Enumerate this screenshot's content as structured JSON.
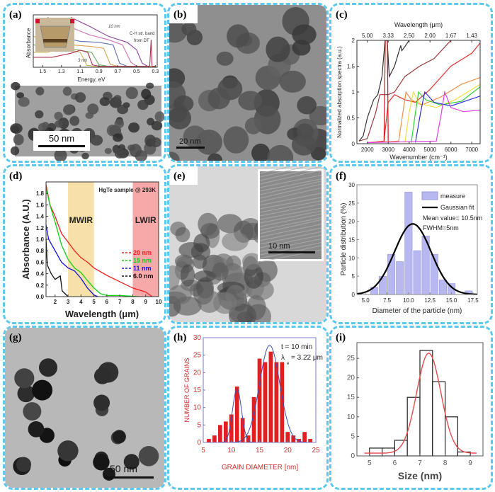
{
  "colors": {
    "border": "#5bc8f0"
  },
  "panels": {
    "a": "(a)",
    "b": "(b)",
    "c": "(c)",
    "d": "(d)",
    "e": "(e)",
    "f": "(f)",
    "g": "(g)",
    "h": "(h)",
    "i": "(i)"
  },
  "images": {
    "a_scale": "50 nm",
    "b_scale": "20 nm",
    "e_scale": "10 nm",
    "g_scale": "50 nm"
  },
  "chart_data": [
    {
      "panel": "a",
      "type": "line",
      "xlabel": "Energy, eV",
      "ylabel": "Absorbance",
      "xlim": [
        1.6,
        0.28
      ],
      "ylim": [
        0,
        1
      ],
      "xticks": [
        1.5,
        1.3,
        1.1,
        0.9,
        0.7,
        0.5,
        0.3
      ],
      "annotations": [
        "10 nm",
        "3 nm",
        "C-H str. band",
        "from DT"
      ],
      "series": [
        {
          "color": "#8a3f9e",
          "points": [
            [
              1.2,
              1.0
            ],
            [
              1.0,
              0.82
            ],
            [
              0.8,
              0.62
            ],
            [
              0.6,
              0.5
            ],
            [
              0.5,
              0.35
            ],
            [
              0.44,
              0.08
            ],
            [
              0.38,
              0.02
            ],
            [
              0.3,
              0.02
            ]
          ]
        },
        {
          "color": "#d070b0",
          "points": [
            [
              1.45,
              1.0
            ],
            [
              1.2,
              0.8
            ],
            [
              1.0,
              0.65
            ],
            [
              0.8,
              0.55
            ],
            [
              0.65,
              0.45
            ],
            [
              0.56,
              0.1
            ],
            [
              0.5,
              0.02
            ],
            [
              0.3,
              0.02
            ]
          ]
        },
        {
          "color": "#5b6fb0",
          "points": [
            [
              1.5,
              0.8
            ],
            [
              1.3,
              0.6
            ],
            [
              1.1,
              0.52
            ],
            [
              0.9,
              0.5
            ],
            [
              0.75,
              0.45
            ],
            [
              0.68,
              0.08
            ],
            [
              0.6,
              0.02
            ],
            [
              0.3,
              0.02
            ]
          ]
        },
        {
          "color": "#d9a050",
          "points": [
            [
              1.6,
              0.62
            ],
            [
              1.4,
              0.5
            ],
            [
              1.2,
              0.45
            ],
            [
              1.0,
              0.42
            ],
            [
              0.85,
              0.38
            ],
            [
              0.78,
              0.06
            ],
            [
              0.7,
              0.02
            ],
            [
              0.3,
              0.02
            ]
          ]
        },
        {
          "color": "#6aa858",
          "points": [
            [
              1.6,
              0.45
            ],
            [
              1.4,
              0.38
            ],
            [
              1.25,
              0.38
            ],
            [
              1.1,
              0.34
            ],
            [
              0.98,
              0.3
            ],
            [
              0.9,
              0.05
            ],
            [
              0.8,
              0.02
            ],
            [
              0.3,
              0.02
            ]
          ]
        },
        {
          "color": "#c9b55a",
          "points": [
            [
              1.6,
              0.3
            ],
            [
              1.45,
              0.3
            ],
            [
              1.3,
              0.38
            ],
            [
              1.2,
              0.34
            ],
            [
              1.1,
              0.3
            ],
            [
              1.03,
              0.04
            ],
            [
              0.95,
              0.02
            ],
            [
              0.3,
              0.02
            ]
          ]
        },
        {
          "color": "#b03050",
          "points": [
            [
              1.6,
              0.2
            ],
            [
              1.4,
              0.2
            ],
            [
              1.2,
              0.28
            ],
            [
              1.1,
              0.34
            ],
            [
              1.02,
              0.3
            ],
            [
              0.97,
              0.05
            ],
            [
              0.9,
              0.02
            ],
            [
              0.36,
              0.02
            ],
            [
              0.345,
              0.55
            ],
            [
              0.335,
              0.02
            ],
            [
              0.3,
              0.02
            ]
          ]
        }
      ]
    },
    {
      "panel": "c",
      "type": "line",
      "xlabel": "Wavenumber (cm⁻¹)",
      "ylabel": "Normalized absorption spectra (a.u.)",
      "top_xlabel": "Wavelength (μm)",
      "xlim": [
        1500,
        7400
      ],
      "ylim": [
        0,
        2.0
      ],
      "xticks": [
        2000,
        3000,
        4000,
        5000,
        6000,
        7000
      ],
      "yticks": [
        0.0,
        0.5,
        1.0,
        1.5,
        2.0
      ],
      "top_xticks": [
        "5.00",
        "3.33",
        "2.50",
        "2.00",
        "1.67",
        "1.43"
      ],
      "series": [
        {
          "color": "#333333",
          "points": [
            [
              1600,
              0.05
            ],
            [
              1800,
              0.15
            ],
            [
              2000,
              0.5
            ],
            [
              2300,
              0.85
            ],
            [
              2500,
              0.95
            ],
            [
              2700,
              1.3
            ],
            [
              2850,
              2.0
            ],
            [
              2950,
              2.0
            ],
            [
              3050,
              1.3
            ],
            [
              3300,
              1.5
            ],
            [
              3600,
              1.9
            ],
            [
              3650,
              1.8
            ],
            [
              3800,
              1.88
            ],
            [
              4000,
              2.0
            ]
          ]
        },
        {
          "color": "#9a3a3a",
          "points": [
            [
              1600,
              0.05
            ],
            [
              2000,
              0.1
            ],
            [
              2400,
              0.6
            ],
            [
              2600,
              0.95
            ],
            [
              3000,
              0.95
            ],
            [
              3300,
              1.0
            ],
            [
              3800,
              1.3
            ],
            [
              4500,
              1.5
            ],
            [
              5200,
              1.65
            ],
            [
              6000,
              2.0
            ]
          ]
        },
        {
          "color": "#e53030",
          "points": [
            [
              2000,
              0.02
            ],
            [
              2800,
              0.05
            ],
            [
              3000,
              0.8
            ],
            [
              3300,
              0.95
            ],
            [
              3800,
              0.85
            ],
            [
              4300,
              0.8
            ],
            [
              5000,
              1.05
            ],
            [
              6000,
              1.5
            ],
            [
              7000,
              1.75
            ],
            [
              7400,
              1.95
            ]
          ]
        },
        {
          "color": "#f0904a",
          "points": [
            [
              2000,
              0.02
            ],
            [
              3500,
              0.05
            ],
            [
              3700,
              0.6
            ],
            [
              3850,
              1.0
            ],
            [
              4100,
              0.85
            ],
            [
              4600,
              0.75
            ],
            [
              5500,
              0.9
            ],
            [
              6500,
              1.15
            ],
            [
              7400,
              1.28
            ]
          ]
        },
        {
          "color": "#f0e040",
          "points": [
            [
              3800,
              0.02
            ],
            [
              4000,
              0.6
            ],
            [
              4200,
              1.0
            ],
            [
              4500,
              0.78
            ],
            [
              5300,
              0.7
            ],
            [
              6200,
              0.85
            ],
            [
              7400,
              1.15
            ]
          ]
        },
        {
          "color": "#30d030",
          "points": [
            [
              4100,
              0.02
            ],
            [
              4300,
              0.6
            ],
            [
              4450,
              1.0
            ],
            [
              4800,
              0.85
            ],
            [
              5500,
              0.75
            ],
            [
              6500,
              0.82
            ],
            [
              7400,
              1.1
            ]
          ]
        },
        {
          "color": "#3030e0",
          "points": [
            [
              4300,
              0.02
            ],
            [
              4550,
              0.6
            ],
            [
              4750,
              1.0
            ],
            [
              5200,
              0.8
            ],
            [
              6000,
              0.73
            ],
            [
              7400,
              0.92
            ]
          ]
        },
        {
          "color": "#e040e0",
          "points": [
            [
              2000,
              0.02
            ],
            [
              5300,
              0.05
            ],
            [
              5550,
              0.6
            ],
            [
              5700,
              1.0
            ],
            [
              6000,
              0.7
            ],
            [
              6600,
              0.62
            ],
            [
              7400,
              0.65
            ]
          ]
        },
        {
          "color": "#d01010",
          "points": [
            [
              2800,
              0.05
            ],
            [
              2860,
              2.0
            ],
            [
              2960,
              2.0
            ],
            [
              3000,
              0.05
            ]
          ]
        }
      ]
    },
    {
      "panel": "d",
      "type": "line",
      "title": "HgTe sample @ 293K",
      "xlabel": "Wavelength (μm)",
      "ylabel": "Absorbance (A.U.)",
      "xlim": [
        1.3,
        10
      ],
      "ylim": [
        0,
        2.0
      ],
      "xticks": [
        2,
        3,
        4,
        5,
        6,
        7,
        8,
        9,
        10
      ],
      "yticks": [
        "0.0",
        "0.2",
        "0.4",
        "0.6",
        "0.8",
        "1.0",
        "1.2",
        "1.4",
        "1.6",
        "1.8"
      ],
      "bands": [
        {
          "label": "MWIR",
          "range": [
            3,
            5
          ],
          "color": "#f8e1a8"
        },
        {
          "label": "LWIR",
          "range": [
            8,
            10
          ],
          "color": "#f7a8a8"
        }
      ],
      "legend_position": "right",
      "series": [
        {
          "name": "20 nm",
          "color": "#ee2020",
          "points": [
            [
              1.3,
              1.95
            ],
            [
              1.6,
              1.6
            ],
            [
              2,
              1.4
            ],
            [
              2.5,
              1.1
            ],
            [
              3,
              0.95
            ],
            [
              3.5,
              0.8
            ],
            [
              4,
              0.68
            ],
            [
              4.5,
              0.6
            ],
            [
              5,
              0.5
            ],
            [
              6,
              0.37
            ],
            [
              7,
              0.26
            ],
            [
              8,
              0.15
            ],
            [
              9,
              0.08
            ],
            [
              9.5,
              0
            ]
          ]
        },
        {
          "name": "15 nm",
          "color": "#10d010",
          "points": [
            [
              1.3,
              1.9
            ],
            [
              1.6,
              1.6
            ],
            [
              2,
              1.3
            ],
            [
              2.5,
              0.9
            ],
            [
              3,
              0.65
            ],
            [
              3.5,
              0.5
            ],
            [
              4,
              0.42
            ],
            [
              4.5,
              0.28
            ],
            [
              5,
              0.15
            ],
            [
              5.5,
              0.05
            ],
            [
              6,
              0.02
            ],
            [
              7,
              0.02
            ],
            [
              8.5,
              0
            ]
          ]
        },
        {
          "name": "11 nm",
          "color": "#1010e0",
          "points": [
            [
              1.3,
              1.25
            ],
            [
              1.5,
              1.0
            ],
            [
              2,
              0.8
            ],
            [
              2.5,
              0.6
            ],
            [
              3,
              0.5
            ],
            [
              3.5,
              0.45
            ],
            [
              4,
              0.32
            ],
            [
              4.5,
              0.15
            ],
            [
              5,
              0.03
            ],
            [
              5.3,
              0
            ]
          ]
        },
        {
          "name": "6.0 nm",
          "color": "#111111",
          "points": [
            [
              1.3,
              1.0
            ],
            [
              1.4,
              0.55
            ],
            [
              1.7,
              0.4
            ],
            [
              2,
              0.3
            ],
            [
              2.4,
              0.36
            ],
            [
              2.55,
              0.1
            ],
            [
              3,
              0
            ]
          ]
        }
      ]
    },
    {
      "panel": "f",
      "type": "bar",
      "xlabel": "Diameter of the particle (nm)",
      "ylabel": "Particle distribution (%)",
      "xlim": [
        4,
        18
      ],
      "ylim": [
        0,
        30
      ],
      "xticks": [
        "5.0",
        "7.5",
        "10.0",
        "12.5",
        "15.0",
        "17.5"
      ],
      "yticks": [
        0,
        5,
        10,
        15,
        20,
        25,
        30
      ],
      "categories": [
        6,
        7,
        8,
        9,
        10,
        11,
        12,
        13,
        14,
        15,
        17
      ],
      "values": [
        2,
        5,
        11,
        9,
        28,
        12,
        16,
        11,
        4,
        3,
        1
      ],
      "fit": {
        "type": "gaussian",
        "mean": 10.5,
        "fwhm": 5,
        "peak": 19.3
      },
      "legend": [
        "measure",
        "Gaussian fit"
      ],
      "legend_position": "top-right",
      "annotations": [
        "Mean value= 10.5nm",
        "FWHM=5nm"
      ],
      "bar_color": "#b8b8f0"
    },
    {
      "panel": "h",
      "type": "bar",
      "xlabel": "GRAIN DIAMETER   [nm]",
      "ylabel": "NUMBER OF GRAINS",
      "xlim": [
        5,
        25
      ],
      "ylim": [
        0,
        30
      ],
      "xticks": [
        5,
        10,
        15,
        20,
        25
      ],
      "yticks": [
        0,
        5,
        10,
        15,
        20,
        25,
        30
      ],
      "categories": [
        6,
        7,
        8,
        9,
        10,
        11,
        12,
        13,
        14,
        15,
        16,
        17,
        18,
        19,
        20,
        21,
        22,
        23,
        24
      ],
      "values": [
        1,
        2,
        5,
        6,
        8,
        16,
        7,
        2,
        13,
        24,
        23,
        26,
        23,
        23,
        3,
        2,
        1,
        3,
        1
      ],
      "fit": [
        {
          "type": "gaussian",
          "mean": 11,
          "sigma": 0.8,
          "peak": 15.3
        },
        {
          "type": "gaussian",
          "mean": 16.8,
          "sigma": 1.8,
          "peak": 27.8
        }
      ],
      "annotations": [
        "t = 10 min",
        "λ",
        "e",
        "= 3.22 μm"
      ],
      "bar_color": "#e02020"
    },
    {
      "panel": "i",
      "type": "bar",
      "xlabel": "Size (nm)",
      "ylabel": "",
      "xlim": [
        4.5,
        9.5
      ],
      "ylim": [
        0,
        29
      ],
      "xticks": [
        5,
        6,
        7,
        8,
        9
      ],
      "yticks": [
        0,
        5,
        10,
        15,
        20,
        25
      ],
      "bin_edges": [
        5,
        5.5,
        6,
        6.5,
        7,
        7.5,
        8,
        8.5,
        9
      ],
      "values": [
        2,
        2,
        4,
        15,
        27,
        19,
        10,
        1
      ],
      "fit": {
        "type": "gaussian",
        "mean": 7.35,
        "sigma": 0.48,
        "peak": 25.6,
        "baseline": 0.7
      },
      "bar_color": "#ffffff"
    }
  ]
}
